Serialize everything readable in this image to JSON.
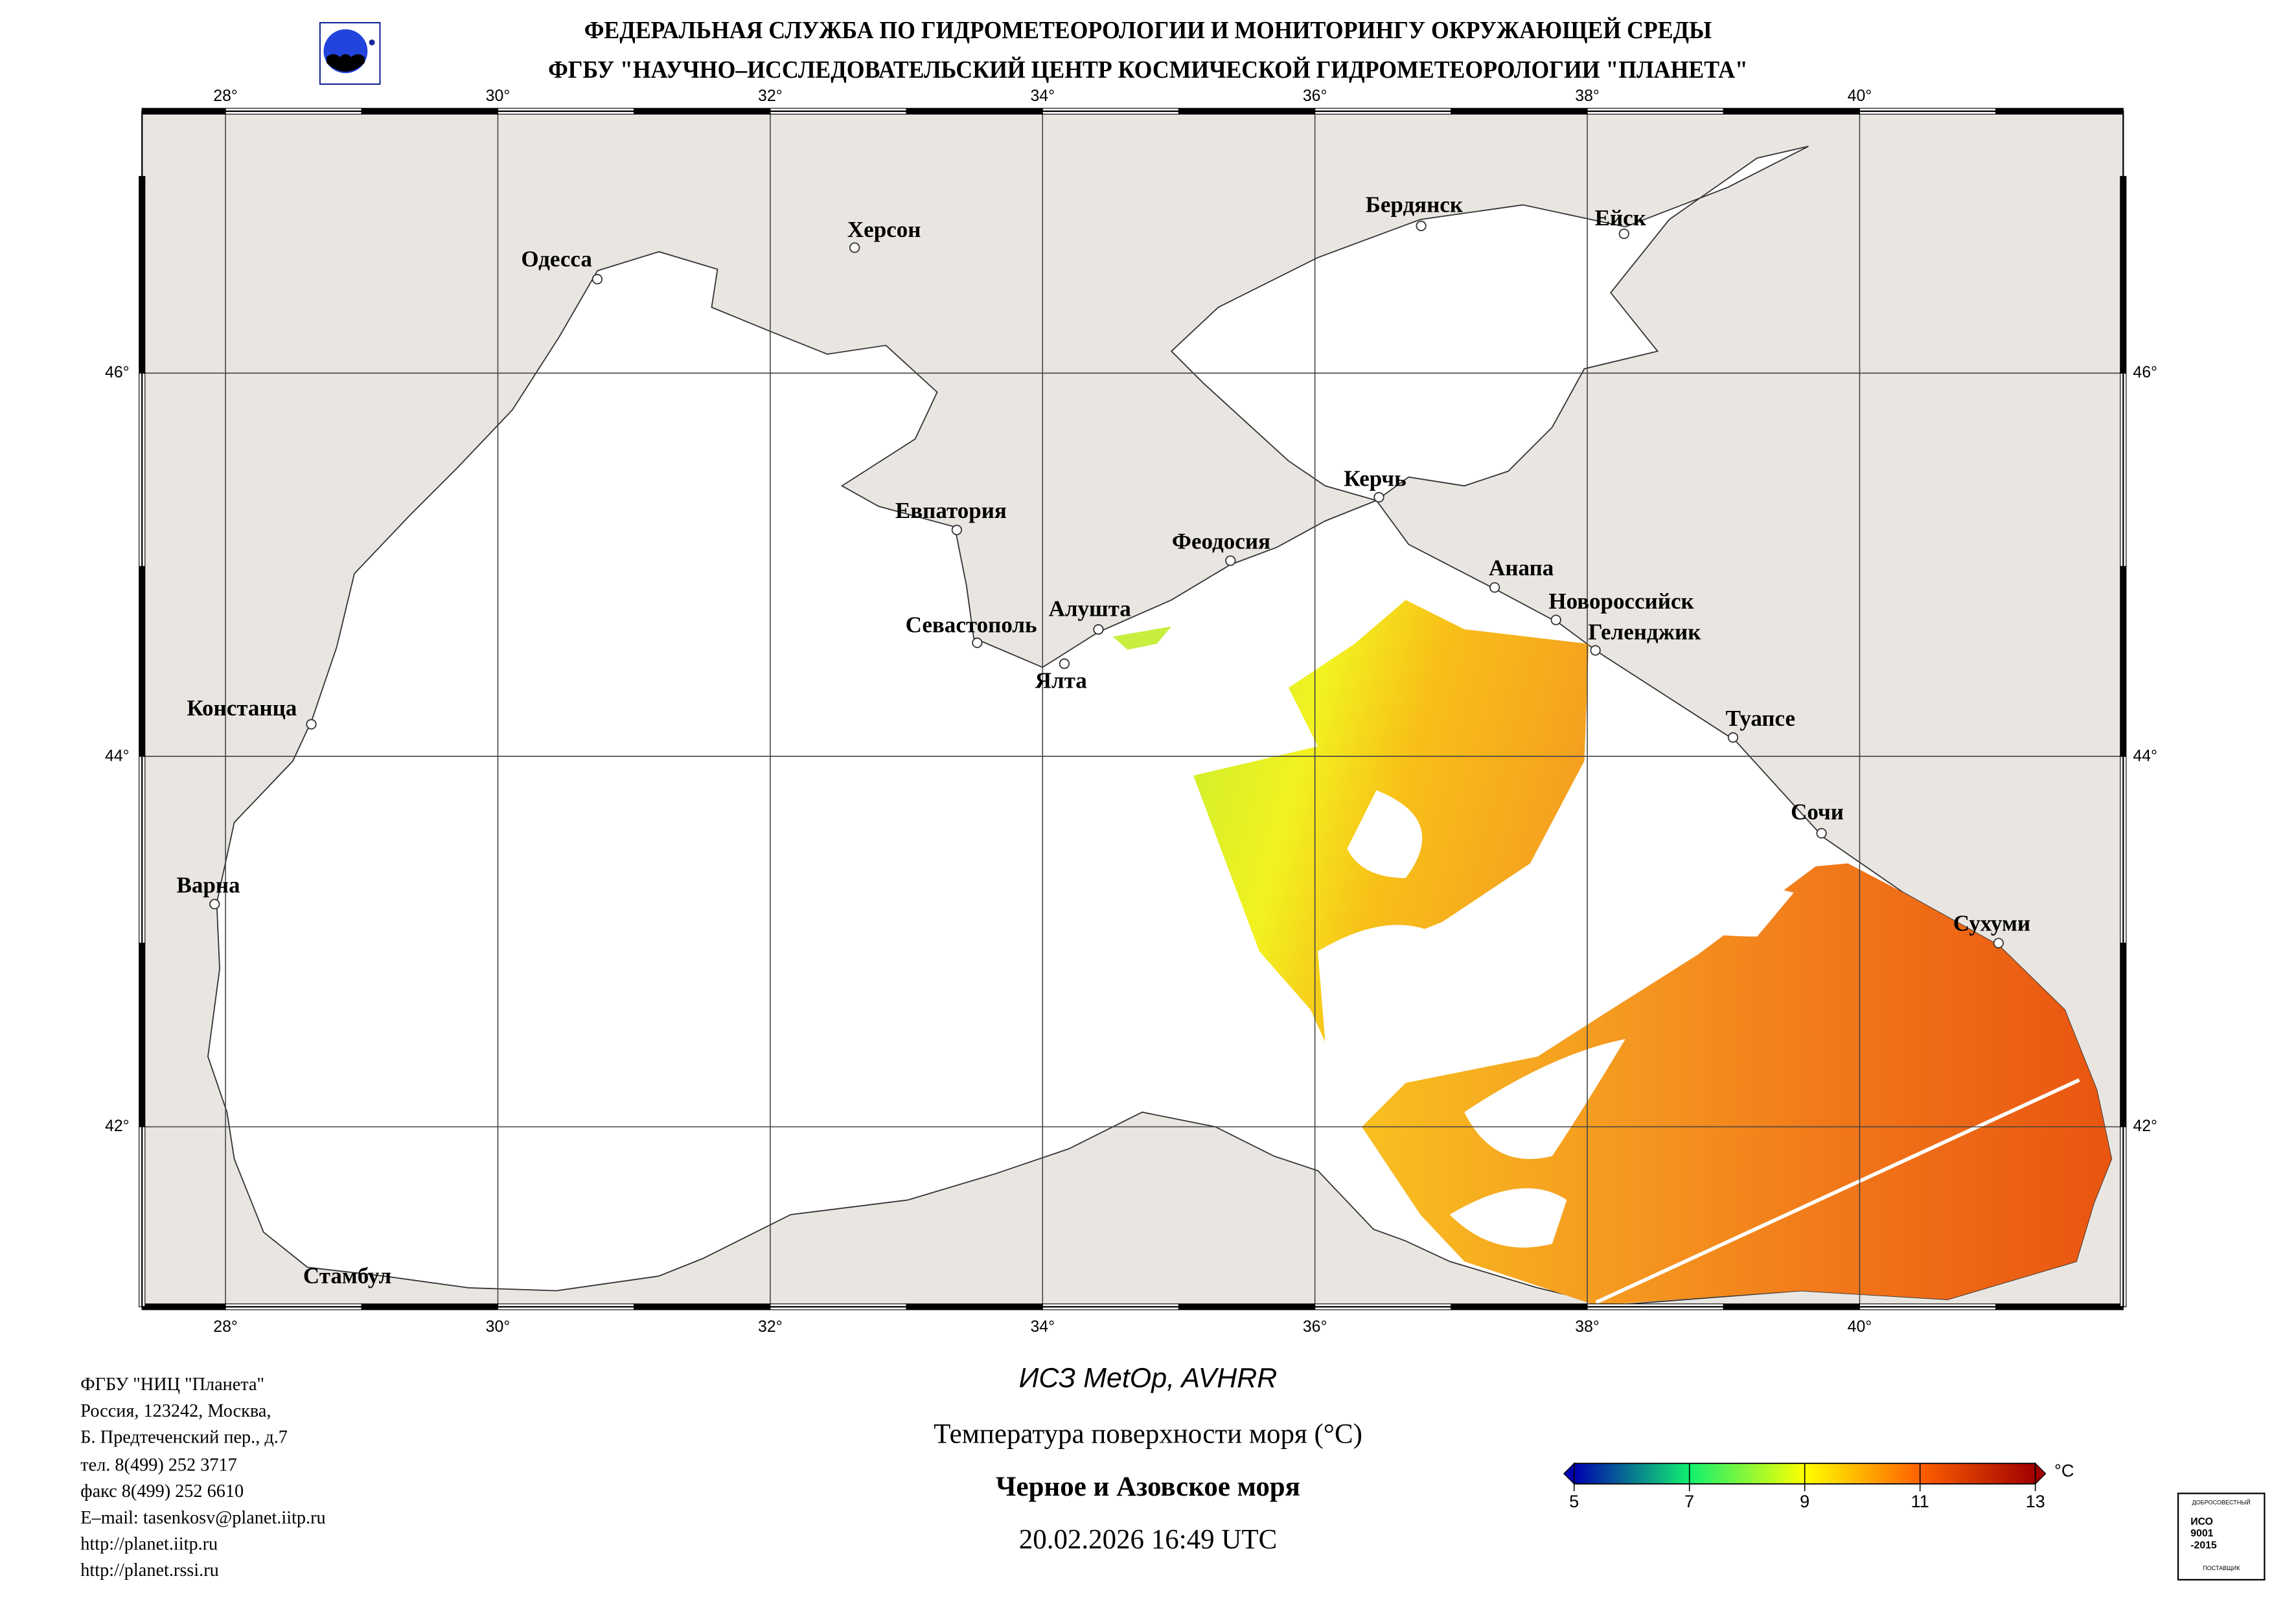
{
  "header": {
    "line1": "ФЕДЕРАЛЬНАЯ СЛУЖБА ПО ГИДРОМЕТЕОРОЛОГИИ И МОНИТОРИНГУ ОКРУЖАЮЩЕЙ СРЕДЫ",
    "line2": "ФГБУ \"НАУЧНО–ИССЛЕДОВАТЕЛЬСКИЙ ЦЕНТР КОСМИЧЕСКОЙ ГИДРОМЕТЕОРОЛОГИИ \"ПЛАНЕТА\""
  },
  "map": {
    "lon_labels": [
      {
        "lon": 28,
        "label": "28°"
      },
      {
        "lon": 30,
        "label": "30°"
      },
      {
        "lon": 32,
        "label": "32°"
      },
      {
        "lon": 34,
        "label": "34°"
      },
      {
        "lon": 36,
        "label": "36°"
      },
      {
        "lon": 38,
        "label": "38°"
      },
      {
        "lon": 40,
        "label": "40°"
      }
    ],
    "lat_labels": [
      {
        "lat": 46,
        "label": "46°"
      },
      {
        "lat": 44,
        "label": "44°"
      },
      {
        "lat": 42,
        "label": "42°"
      }
    ],
    "cities": [
      {
        "name": "Одесса",
        "lon": 30.73,
        "lat": 46.48
      },
      {
        "name": "Херсон",
        "lon": 32.62,
        "lat": 46.64
      },
      {
        "name": "Бердянск",
        "lon": 36.78,
        "lat": 46.75
      },
      {
        "name": "Ейск",
        "lon": 38.27,
        "lat": 46.71
      },
      {
        "name": "Евпатория",
        "lon": 33.37,
        "lat": 45.19
      },
      {
        "name": "Керчь",
        "lon": 36.47,
        "lat": 45.36
      },
      {
        "name": "Феодосия",
        "lon": 35.38,
        "lat": 45.03
      },
      {
        "name": "Анапа",
        "lon": 37.32,
        "lat": 44.89
      },
      {
        "name": "Новороссийск",
        "lon": 37.77,
        "lat": 44.72
      },
      {
        "name": "Геленджик",
        "lon": 38.06,
        "lat": 44.56
      },
      {
        "name": "Алушта",
        "lon": 34.41,
        "lat": 44.67
      },
      {
        "name": "Севастополь",
        "lon": 33.52,
        "lat": 44.6
      },
      {
        "name": "Ялта",
        "lon": 34.16,
        "lat": 44.49
      },
      {
        "name": "Туапсе",
        "lon": 39.07,
        "lat": 44.1
      },
      {
        "name": "Сочи",
        "lon": 39.72,
        "lat": 43.59
      },
      {
        "name": "Сухуми",
        "lon": 41.02,
        "lat": 43.0
      },
      {
        "name": "Констанца",
        "lon": 28.63,
        "lat": 44.17
      },
      {
        "name": "Варна",
        "lon": 27.92,
        "lat": 43.21
      },
      {
        "name": "Стамбул",
        "lon": 28.98,
        "lat": 41.2
      }
    ]
  },
  "footer": {
    "lines": [
      "ФГБУ \"НИЦ \"Планета\"",
      "Россия, 123242, Москва,",
      "Б. Предтеченский пер., д.7",
      "тел. 8(499) 252 3717",
      "факс 8(499) 252 6610",
      "E–mail: tasenkosv@planet.iitp.ru",
      "http://planet.iitp.ru",
      "http://planet.rssi.ru"
    ]
  },
  "product": {
    "satellite": "ИСЗ MetOp, AVHRR",
    "parameter": "Температура поверхности моря (°C)",
    "region": "Черное и Азовское моря",
    "datetime": "20.02.2026 16:49 UTC"
  },
  "colorbar": {
    "min": 5,
    "max": 13,
    "ticks": [
      "5",
      "7",
      "9",
      "11",
      "13"
    ],
    "unit": "°C",
    "colors": [
      "#0000b0",
      "#10f070",
      "#ffff00",
      "#ff8800",
      "#a00000"
    ]
  },
  "iso_stamp": {
    "top": "ДОБРОСОВЕСТНЫЙ",
    "text": "ИСО 9001 -2015",
    "bottom": "ПОСТАВЩИК"
  }
}
